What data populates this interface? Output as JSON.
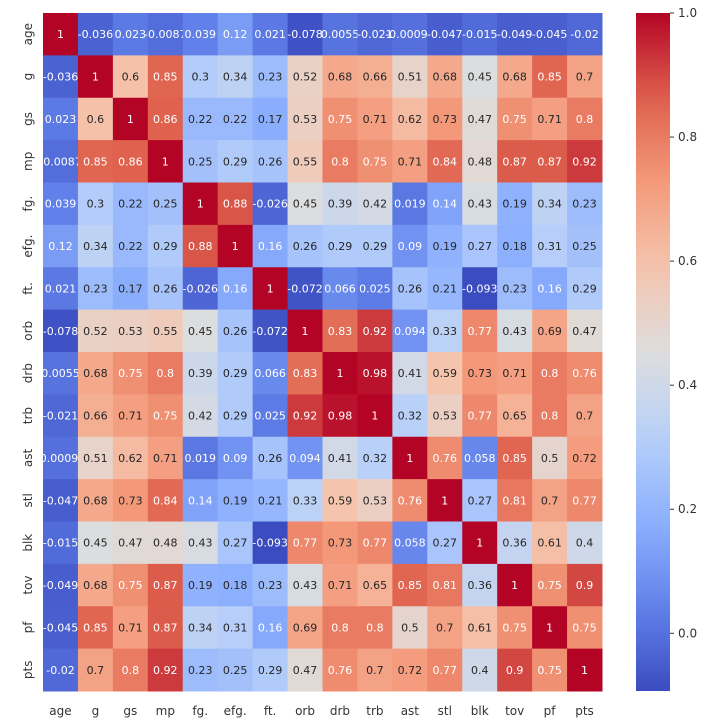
{
  "chart_data": {
    "type": "heatmap",
    "title": "",
    "xlabel": "",
    "ylabel": "",
    "colormap": "coolwarm",
    "vmin": -0.093,
    "vmax": 1.0,
    "labels": [
      "age",
      "g",
      "gs",
      "mp",
      "fg.",
      "efg.",
      "ft.",
      "orb",
      "drb",
      "trb",
      "ast",
      "stl",
      "blk",
      "tov",
      "pf",
      "pts"
    ],
    "matrix": [
      [
        1,
        -0.036,
        0.023,
        -0.0087,
        0.039,
        0.12,
        0.021,
        -0.078,
        0.0055,
        -0.021,
        -0.00092,
        -0.047,
        -0.015,
        -0.049,
        -0.045,
        -0.02
      ],
      [
        -0.036,
        1,
        0.6,
        0.85,
        0.3,
        0.34,
        0.23,
        0.52,
        0.68,
        0.66,
        0.51,
        0.68,
        0.45,
        0.68,
        0.85,
        0.7
      ],
      [
        0.023,
        0.6,
        1,
        0.86,
        0.22,
        0.22,
        0.17,
        0.53,
        0.75,
        0.71,
        0.62,
        0.73,
        0.47,
        0.75,
        0.71,
        0.8
      ],
      [
        -0.0087,
        0.85,
        0.86,
        1,
        0.25,
        0.29,
        0.26,
        0.55,
        0.8,
        0.75,
        0.71,
        0.84,
        0.48,
        0.87,
        0.87,
        0.92
      ],
      [
        0.039,
        0.3,
        0.22,
        0.25,
        1,
        0.88,
        -0.026,
        0.45,
        0.39,
        0.42,
        0.019,
        0.14,
        0.43,
        0.19,
        0.34,
        0.23
      ],
      [
        0.12,
        0.34,
        0.22,
        0.29,
        0.88,
        1,
        0.16,
        0.26,
        0.29,
        0.29,
        0.09,
        0.19,
        0.27,
        0.18,
        0.31,
        0.25
      ],
      [
        0.021,
        0.23,
        0.17,
        0.26,
        -0.026,
        0.16,
        1,
        -0.072,
        0.066,
        0.025,
        0.26,
        0.21,
        -0.093,
        0.23,
        0.16,
        0.29
      ],
      [
        -0.078,
        0.52,
        0.53,
        0.55,
        0.45,
        0.26,
        -0.072,
        1,
        0.83,
        0.92,
        0.094,
        0.33,
        0.77,
        0.43,
        0.69,
        0.47
      ],
      [
        0.0055,
        0.68,
        0.75,
        0.8,
        0.39,
        0.29,
        0.066,
        0.83,
        1,
        0.98,
        0.41,
        0.59,
        0.73,
        0.71,
        0.8,
        0.76
      ],
      [
        -0.021,
        0.66,
        0.71,
        0.75,
        0.42,
        0.29,
        0.025,
        0.92,
        0.98,
        1,
        0.32,
        0.53,
        0.77,
        0.65,
        0.8,
        0.7
      ],
      [
        -0.00092,
        0.51,
        0.62,
        0.71,
        0.019,
        0.09,
        0.26,
        0.094,
        0.41,
        0.32,
        1,
        0.76,
        0.058,
        0.85,
        0.5,
        0.72
      ],
      [
        -0.047,
        0.68,
        0.73,
        0.84,
        0.14,
        0.19,
        0.21,
        0.33,
        0.59,
        0.53,
        0.76,
        1,
        0.27,
        0.81,
        0.7,
        0.77
      ],
      [
        -0.015,
        0.45,
        0.47,
        0.48,
        0.43,
        0.27,
        -0.093,
        0.77,
        0.73,
        0.77,
        0.058,
        0.27,
        1,
        0.36,
        0.61,
        0.4
      ],
      [
        -0.049,
        0.68,
        0.75,
        0.87,
        0.19,
        0.18,
        0.23,
        0.43,
        0.71,
        0.65,
        0.85,
        0.81,
        0.36,
        1,
        0.75,
        0.9
      ],
      [
        -0.045,
        0.85,
        0.71,
        0.87,
        0.34,
        0.31,
        0.16,
        0.69,
        0.8,
        0.8,
        0.5,
        0.7,
        0.61,
        0.75,
        1,
        0.75
      ],
      [
        -0.02,
        0.7,
        0.8,
        0.92,
        0.23,
        0.25,
        0.29,
        0.47,
        0.76,
        0.7,
        0.72,
        0.77,
        0.4,
        0.9,
        0.75,
        1
      ]
    ],
    "colorbar_ticks": [
      "0.0",
      "0.2",
      "0.4",
      "0.6",
      "0.8",
      "1.0"
    ],
    "annotated": true,
    "grid": false,
    "legend": "colorbar-right"
  }
}
